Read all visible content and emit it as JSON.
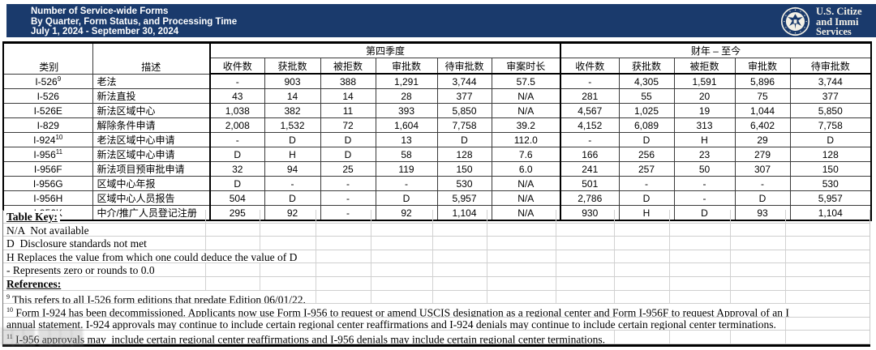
{
  "header": {
    "bar_color": "#1a3a6c",
    "title_lines": [
      "Number of Service-wide Forms",
      "By Quarter, Form Status, and Processing Time",
      "July 1, 2024 - September 30, 2024"
    ],
    "logo": {
      "seal": "dhs-eagle-seal",
      "agency_lines": [
        "U.S. Citize",
        "and Immi",
        "Services"
      ]
    }
  },
  "table": {
    "corner_headers": [
      "类别",
      "描述"
    ],
    "groups": [
      {
        "label": "第四季度",
        "span": 6
      },
      {
        "label": "财年 – 至今",
        "span": 5
      }
    ],
    "q4_columns": [
      "收件数",
      "获批数",
      "被拒数",
      "审批数",
      "待审批数",
      "审案时长"
    ],
    "fy_columns": [
      "收件数",
      "获批数",
      "被拒数",
      "审批数",
      "待审批数"
    ],
    "rows": [
      {
        "category": "I-526",
        "sup": "9",
        "description": "老法",
        "q4": [
          "-",
          "903",
          "388",
          "1,291",
          "3,744",
          "57.5"
        ],
        "fy": [
          "-",
          "4,305",
          "1,591",
          "5,896",
          "3,744"
        ]
      },
      {
        "category": "I-526",
        "sup": "",
        "description": "新法直投",
        "q4": [
          "43",
          "14",
          "14",
          "28",
          "377",
          "N/A"
        ],
        "fy": [
          "281",
          "55",
          "20",
          "75",
          "377"
        ]
      },
      {
        "category": "I-526E",
        "sup": "",
        "description": "新法区域中心",
        "q4": [
          "1,038",
          "382",
          "11",
          "393",
          "5,850",
          "N/A"
        ],
        "fy": [
          "4,567",
          "1,025",
          "19",
          "1,044",
          "5,850"
        ]
      },
      {
        "category": "I-829",
        "sup": "",
        "description": "解除条件申请",
        "q4": [
          "2,008",
          "1,532",
          "72",
          "1,604",
          "7,758",
          "39.2"
        ],
        "fy": [
          "4,152",
          "6,089",
          "313",
          "6,402",
          "7,758"
        ]
      },
      {
        "category": "I-924",
        "sup": "10",
        "description": "老法区域中心申请",
        "q4": [
          "-",
          "D",
          "D",
          "13",
          "D",
          "112.0"
        ],
        "fy": [
          "-",
          "D",
          "H",
          "29",
          "D"
        ]
      },
      {
        "category": "I-956",
        "sup": "11",
        "description": "新法区域中心申请",
        "q4": [
          "D",
          "H",
          "D",
          "58",
          "128",
          "7.6"
        ],
        "fy": [
          "166",
          "256",
          "23",
          "279",
          "128"
        ]
      },
      {
        "category": "I-956F",
        "sup": "",
        "description": "新法项目预审批申请",
        "q4": [
          "32",
          "94",
          "25",
          "119",
          "150",
          "6.0"
        ],
        "fy": [
          "241",
          "257",
          "50",
          "307",
          "150"
        ]
      },
      {
        "category": "I-956G",
        "sup": "",
        "description": "区域中心年报",
        "q4": [
          "D",
          "-",
          "-",
          "-",
          "530",
          "N/A"
        ],
        "fy": [
          "501",
          "-",
          "-",
          "-",
          "530"
        ]
      },
      {
        "category": "I-956H",
        "sup": "",
        "description": "区域中心人员报告",
        "q4": [
          "504",
          "D",
          "-",
          "D",
          "5,957",
          "N/A"
        ],
        "fy": [
          "2,786",
          "D",
          "-",
          "D",
          "5,957"
        ]
      },
      {
        "category": "I-956K",
        "sup": "",
        "description": "中介/推广人员登记注册",
        "q4": [
          "295",
          "92",
          "-",
          "92",
          "1,104",
          "N/A"
        ],
        "fy": [
          "930",
          "H",
          "D",
          "93",
          "1,104"
        ]
      }
    ]
  },
  "notes": {
    "rows": [
      {
        "sup": "",
        "text": "Table Key:",
        "bold": true
      },
      {
        "sup": "",
        "text": "N/A  Not available",
        "bold": false
      },
      {
        "sup": "",
        "text": "D  Disclosure standards not met",
        "bold": false
      },
      {
        "sup": "",
        "text": "H Replaces the value from which one could deduce the value of D",
        "bold": false
      },
      {
        "sup": "",
        "text": "- Represents zero or rounds to 0.0",
        "bold": false
      },
      {
        "sup": "",
        "text": "References:",
        "bold": true
      },
      {
        "sup": "9",
        "text": " This refers to all I-526 form editions that predate Edition 06/01/22.",
        "bold": false
      },
      {
        "sup": "10",
        "text": " Form I-924 has been decommissioned. Applicants now use Form I-956 to request or amend USCIS designation as a regional center and Form I-956F to request Approval of an I",
        "bold": false
      },
      {
        "sup": "",
        "text": "annual statement. I-924 approvals may continue to include certain regional center reaffirmations and I-924 denials may continue to include certain regional center terminations.",
        "bold": false
      },
      {
        "sup": "11",
        "text": " I-956 approvals may  include certain regional center reaffirmations and I-956 denials may include certain regional center terminations.",
        "bold": false
      }
    ]
  },
  "watermark": {
    "text": "▒▒▒ ▒▒▒▒"
  }
}
